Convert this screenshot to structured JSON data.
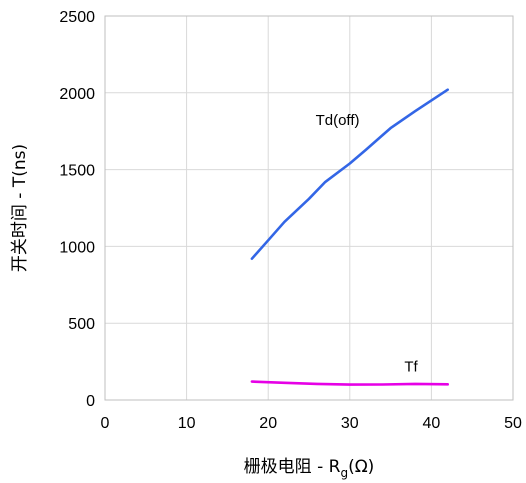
{
  "chart_data": {
    "type": "line",
    "title": "",
    "xlabel": "栅极电阻 - R",
    "xlabel_sub": "g",
    "xlabel_suffix": "(Ω)",
    "ylabel": "开关时间 - T(ns)",
    "xlim": [
      0,
      50
    ],
    "ylim": [
      0,
      2500
    ],
    "x_ticks": [
      0,
      10,
      20,
      30,
      40,
      50
    ],
    "y_ticks": [
      0,
      500,
      1000,
      1500,
      2000,
      2500
    ],
    "x_tick_labels": [
      "0",
      "10",
      "20",
      "30",
      "40",
      "50"
    ],
    "y_tick_labels": [
      "0",
      "500",
      "1000",
      "1500",
      "2000",
      "2500"
    ],
    "grid": true,
    "series": [
      {
        "name": "Td(off)",
        "color": "#3366e6",
        "x": [
          18,
          20,
          22,
          25,
          27,
          30,
          32,
          35,
          38,
          42
        ],
        "y": [
          920,
          1040,
          1160,
          1310,
          1420,
          1540,
          1630,
          1770,
          1880,
          2020
        ]
      },
      {
        "name": "Tf",
        "color": "#e600e6",
        "x": [
          18,
          22,
          26,
          30,
          34,
          38,
          42
        ],
        "y": [
          120,
          112,
          105,
          100,
          101,
          105,
          102
        ]
      }
    ],
    "annotations": [
      {
        "text": "Td(off)",
        "x": 28.5,
        "y": 1790
      },
      {
        "text": "Tf",
        "x": 37.5,
        "y": 185
      }
    ]
  }
}
